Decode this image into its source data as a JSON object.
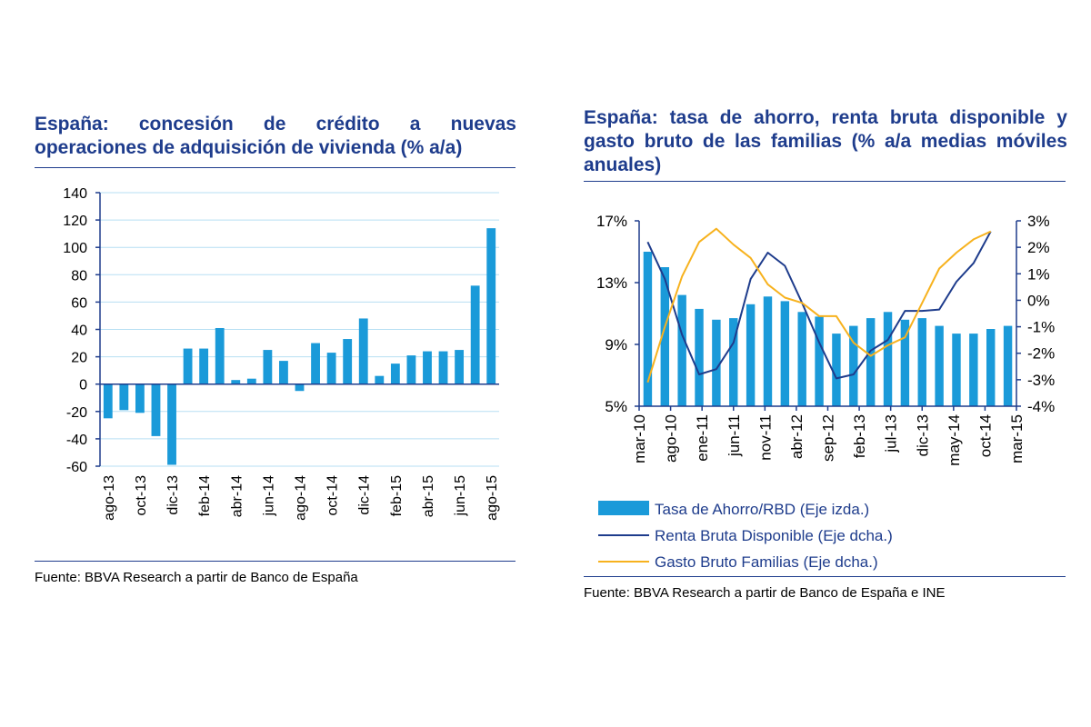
{
  "colors": {
    "bar": "#1a9ad9",
    "navy": "#1e3c8c",
    "orange": "#f7b21e",
    "grid": "#b7dff3"
  },
  "left": {
    "title_line1": "España: concesión de crédito a nuevas",
    "title_line2": "operaciones de adquisición de vivienda (% a/a)",
    "source": "Fuente: BBVA Research a partir de Banco de España"
  },
  "right": {
    "title": "España: tasa de ahorro, renta bruta disponible y gasto bruto de las familias (% a/a medias móviles anuales)",
    "source": "Fuente: BBVA Research a partir de Banco de España e INE"
  },
  "chart_data": [
    {
      "type": "bar",
      "title": "España: concesión de crédito a nuevas operaciones de adquisición de vivienda (% a/a)",
      "ylim": [
        -60,
        140
      ],
      "yticks": [
        140,
        120,
        100,
        80,
        60,
        40,
        20,
        0,
        -20,
        -40,
        -60
      ],
      "grid": true,
      "tick_labels": [
        "ago-13",
        "oct-13",
        "dic-13",
        "feb-14",
        "abr-14",
        "jun-14",
        "ago-14",
        "oct-14",
        "dic-14",
        "feb-15",
        "abr-15",
        "jun-15",
        "ago-15"
      ],
      "categories": [
        "ago-13",
        "sep-13",
        "oct-13",
        "nov-13",
        "dic-13",
        "ene-14",
        "feb-14",
        "mar-14",
        "abr-14",
        "may-14",
        "jun-14",
        "jul-14",
        "ago-14",
        "sep-14",
        "oct-14",
        "nov-14",
        "dic-14",
        "ene-15",
        "feb-15",
        "mar-15",
        "abr-15",
        "may-15",
        "jun-15",
        "jul-15",
        "ago-15"
      ],
      "values": [
        -25,
        -19,
        -21,
        -38,
        -59,
        26,
        26,
        41,
        3,
        4,
        25,
        17,
        -5,
        30,
        23,
        33,
        48,
        6,
        15,
        21,
        24,
        24,
        25,
        72,
        114
      ]
    },
    {
      "type": "bar+line",
      "title": "España: tasa de ahorro, renta bruta disponible y gasto bruto de las familias (% a/a medias móviles anuales)",
      "tick_labels": [
        "mar-10",
        "ago-10",
        "ene-11",
        "jun-11",
        "nov-11",
        "abr-12",
        "sep-12",
        "feb-13",
        "jul-13",
        "dic-13",
        "may-14",
        "oct-14",
        "mar-15"
      ],
      "left_axis": {
        "ticks": [
          "17%",
          "13%",
          "9%",
          "5%"
        ],
        "range": [
          5,
          17
        ]
      },
      "right_axis": {
        "ticks": [
          "3%",
          "2%",
          "1%",
          "0%",
          "-1%",
          "-2%",
          "-3%",
          "-4%"
        ],
        "range": [
          -4,
          3
        ]
      },
      "series": [
        {
          "name": "Tasa de Ahorro/RBD (Eje izda.)",
          "type": "bar",
          "axis": "left",
          "values": [
            15.0,
            14.0,
            12.2,
            11.3,
            10.6,
            10.7,
            11.6,
            12.1,
            11.8,
            11.1,
            10.8,
            9.7,
            10.2,
            10.7,
            11.1,
            10.6,
            10.7,
            10.2,
            9.7,
            9.7,
            10.0,
            10.2
          ]
        },
        {
          "name": "Renta Bruta Disponible (Eje dcha.)",
          "type": "line",
          "axis": "right",
          "points": [
            [
              0,
              2.2
            ],
            [
              1,
              0.8
            ],
            [
              2,
              -1.3
            ],
            [
              3,
              -2.8
            ],
            [
              4,
              -2.6
            ],
            [
              5,
              -1.6
            ],
            [
              6,
              0.8
            ],
            [
              7,
              1.8
            ],
            [
              8,
              1.3
            ],
            [
              9,
              -0.1
            ],
            [
              10,
              -1.6
            ],
            [
              11,
              -2.95
            ],
            [
              12,
              -2.8
            ],
            [
              13,
              -1.9
            ],
            [
              14,
              -1.5
            ],
            [
              15,
              -0.4
            ],
            [
              16,
              -0.4
            ],
            [
              17,
              -0.35
            ],
            [
              18,
              0.7
            ],
            [
              19,
              1.4
            ],
            [
              20,
              2.6
            ]
          ]
        },
        {
          "name": "Gasto Bruto Familias (Eje dcha.)",
          "type": "line",
          "axis": "right",
          "points": [
            [
              0,
              -3.1
            ],
            [
              1,
              -1.0
            ],
            [
              2,
              0.9
            ],
            [
              3,
              2.2
            ],
            [
              4,
              2.7
            ],
            [
              5,
              2.1
            ],
            [
              6,
              1.6
            ],
            [
              7,
              0.6
            ],
            [
              8,
              0.1
            ],
            [
              9,
              -0.1
            ],
            [
              10,
              -0.6
            ],
            [
              11,
              -0.6
            ],
            [
              12,
              -1.6
            ],
            [
              13,
              -2.1
            ],
            [
              14,
              -1.7
            ],
            [
              15,
              -1.4
            ],
            [
              16,
              -0.1
            ],
            [
              17,
              1.2
            ],
            [
              18,
              1.8
            ],
            [
              19,
              2.3
            ],
            [
              20,
              2.6
            ]
          ]
        }
      ]
    }
  ]
}
